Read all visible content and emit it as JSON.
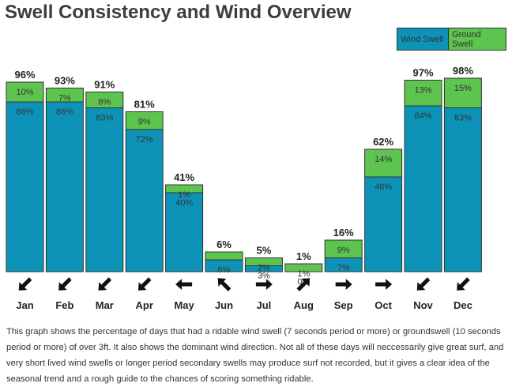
{
  "title": "Swell Consistency and Wind Overview",
  "legend": {
    "wind_label": "Wind Swell",
    "ground_label": "Ground Swell"
  },
  "colors": {
    "wind": "#0e93b8",
    "ground": "#5cc44f",
    "border": "#333333"
  },
  "chart_data": {
    "type": "bar",
    "stacked": true,
    "categories": [
      "Jan",
      "Feb",
      "Mar",
      "Apr",
      "May",
      "Jun",
      "Jul",
      "Aug",
      "Sep",
      "Oct",
      "Nov",
      "Dec"
    ],
    "series": [
      {
        "name": "Wind Swell",
        "values": [
          86,
          86,
          83,
          72,
          40,
          6,
          3,
          0,
          7,
          48,
          84,
          83
        ],
        "labels": [
          "86%",
          "86%",
          "83%",
          "72%",
          "40%",
          "6%",
          "3%",
          "0%",
          "7%",
          "48%",
          "84%",
          "83%"
        ]
      },
      {
        "name": "Ground Swell",
        "values": [
          10,
          7,
          8,
          9,
          1,
          0,
          2,
          1,
          9,
          14,
          13,
          15
        ],
        "labels": [
          "10%",
          "7%",
          "8%",
          "9%",
          "1%",
          "",
          "2%",
          "1%",
          "9%",
          "14%",
          "13%",
          "15%"
        ]
      }
    ],
    "totals": [
      "96%",
      "93%",
      "91%",
      "81%",
      "41%",
      "6%",
      "5%",
      "1%",
      "16%",
      "62%",
      "97%",
      "98%"
    ],
    "wind_direction_icons": [
      "arrow-sw",
      "arrow-sw",
      "arrow-sw",
      "arrow-sw",
      "arrow-w",
      "arrow-nw",
      "arrow-e",
      "arrow-ne",
      "arrow-e",
      "arrow-e",
      "arrow-sw",
      "arrow-sw"
    ],
    "legend_position": "top-right"
  },
  "description": "This graph shows the percentage of days that had a ridable wind swell (7 seconds period or more) or groundswell (10 seconds period or more) of over 3ft. It also shows the dominant wind direction. Not all of these days will neccessarily give great surf, and very short lived wind swells or longer period secondary swells may produce surf not recorded, but it gives a clear idea of the seasonal trend and a rough guide to the chances of scoring something ridable."
}
